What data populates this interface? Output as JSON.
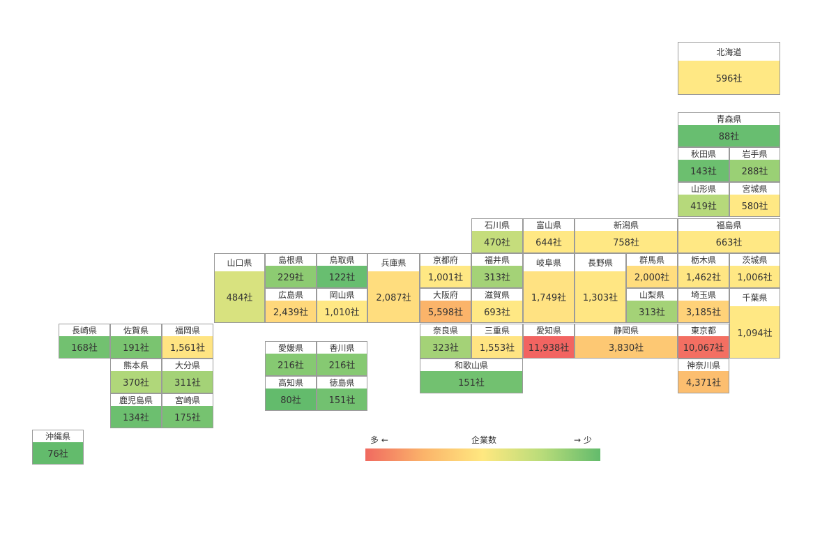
{
  "prefectures": {
    "hokkaido": {
      "name": "北海道",
      "count": "596社",
      "color": "#ffe884"
    },
    "aomori": {
      "name": "青森県",
      "count": "88社",
      "color": "#68be70"
    },
    "akita": {
      "name": "秋田県",
      "count": "143社",
      "color": "#6cbf6f"
    },
    "iwate": {
      "name": "岩手県",
      "count": "288社",
      "color": "#9ad075"
    },
    "yamagata": {
      "name": "山形県",
      "count": "419社",
      "color": "#b6d97b"
    },
    "miyagi": {
      "name": "宮城県",
      "count": "580社",
      "color": "#ffe884"
    },
    "ishikawa": {
      "name": "石川県",
      "count": "470社",
      "color": "#c5dd7c"
    },
    "toyama": {
      "name": "富山県",
      "count": "644社",
      "color": "#ffe884"
    },
    "niigata": {
      "name": "新潟県",
      "count": "758社",
      "color": "#ffe884"
    },
    "fukushima": {
      "name": "福島県",
      "count": "663社",
      "color": "#ffe884"
    },
    "yamaguchi": {
      "name": "山口県",
      "count": "484社",
      "color": "#d8e27f"
    },
    "shimane": {
      "name": "島根県",
      "count": "229社",
      "color": "#8dcb72"
    },
    "tottori": {
      "name": "鳥取県",
      "count": "122社",
      "color": "#68be70"
    },
    "hyogo": {
      "name": "兵庫県",
      "count": "2,087社",
      "color": "#ffdd7e"
    },
    "kyoto": {
      "name": "京都府",
      "count": "1,001社",
      "color": "#ffe884"
    },
    "fukui": {
      "name": "福井県",
      "count": "313社",
      "color": "#a4d277"
    },
    "gifu": {
      "name": "岐阜県",
      "count": "1,749社",
      "color": "#ffe282"
    },
    "nagano": {
      "name": "長野県",
      "count": "1,303社",
      "color": "#ffe683"
    },
    "gunma": {
      "name": "群馬県",
      "count": "2,000社",
      "color": "#ffdd7e"
    },
    "tochigi": {
      "name": "栃木県",
      "count": "1,462社",
      "color": "#ffe683"
    },
    "ibaraki": {
      "name": "茨城県",
      "count": "1,006社",
      "color": "#ffe884"
    },
    "hiroshima": {
      "name": "広島県",
      "count": "2,439社",
      "color": "#ffd87b"
    },
    "okayama": {
      "name": "岡山県",
      "count": "1,010社",
      "color": "#ffe884"
    },
    "osaka": {
      "name": "大阪府",
      "count": "5,598社",
      "color": "#fbb46a"
    },
    "shiga": {
      "name": "滋賀県",
      "count": "693社",
      "color": "#ffe884"
    },
    "yamanashi": {
      "name": "山梨県",
      "count": "313社",
      "color": "#a4d277"
    },
    "saitama": {
      "name": "埼玉県",
      "count": "3,185社",
      "color": "#ffd279"
    },
    "chiba": {
      "name": "千葉県",
      "count": "1,094社",
      "color": "#ffe884"
    },
    "nagasaki": {
      "name": "長崎県",
      "count": "168社",
      "color": "#72c170"
    },
    "saga": {
      "name": "佐賀県",
      "count": "191社",
      "color": "#7ac470"
    },
    "fukuoka": {
      "name": "福岡県",
      "count": "1,561社",
      "color": "#ffe482"
    },
    "nara": {
      "name": "奈良県",
      "count": "323社",
      "color": "#a4d277"
    },
    "mie": {
      "name": "三重県",
      "count": "1,553社",
      "color": "#ffe482"
    },
    "aichi": {
      "name": "愛知県",
      "count": "11,938社",
      "color": "#f26461"
    },
    "shizuoka": {
      "name": "静岡県",
      "count": "3,830社",
      "color": "#fdc873"
    },
    "tokyo": {
      "name": "東京都",
      "count": "10,067社",
      "color": "#f36f62"
    },
    "ehime": {
      "name": "愛媛県",
      "count": "216社",
      "color": "#86c972"
    },
    "kagawa": {
      "name": "香川県",
      "count": "216社",
      "color": "#86c972"
    },
    "kumamoto": {
      "name": "熊本県",
      "count": "370社",
      "color": "#b0d77a"
    },
    "oita": {
      "name": "大分県",
      "count": "311社",
      "color": "#a4d277"
    },
    "wakayama": {
      "name": "和歌山県",
      "count": "151社",
      "color": "#72c170"
    },
    "kanagawa": {
      "name": "神奈川県",
      "count": "4,371社",
      "color": "#fcbe6f"
    },
    "kochi": {
      "name": "高知県",
      "count": "80社",
      "color": "#63bb6c"
    },
    "tokushima": {
      "name": "徳島県",
      "count": "151社",
      "color": "#72c170"
    },
    "kagoshima": {
      "name": "鹿児島県",
      "count": "134社",
      "color": "#6cbf6f"
    },
    "miyazaki": {
      "name": "宮崎県",
      "count": "175社",
      "color": "#76c370"
    },
    "okinawa": {
      "name": "沖縄県",
      "count": "76社",
      "color": "#63bb6c"
    }
  },
  "legend": {
    "left_label": "多 ←",
    "title": "企業数",
    "right_label": "→ 少",
    "gradient_colors": [
      "#f06a60",
      "#fbb46a",
      "#ffe880",
      "#b9dc7a",
      "#63bb6c"
    ]
  }
}
